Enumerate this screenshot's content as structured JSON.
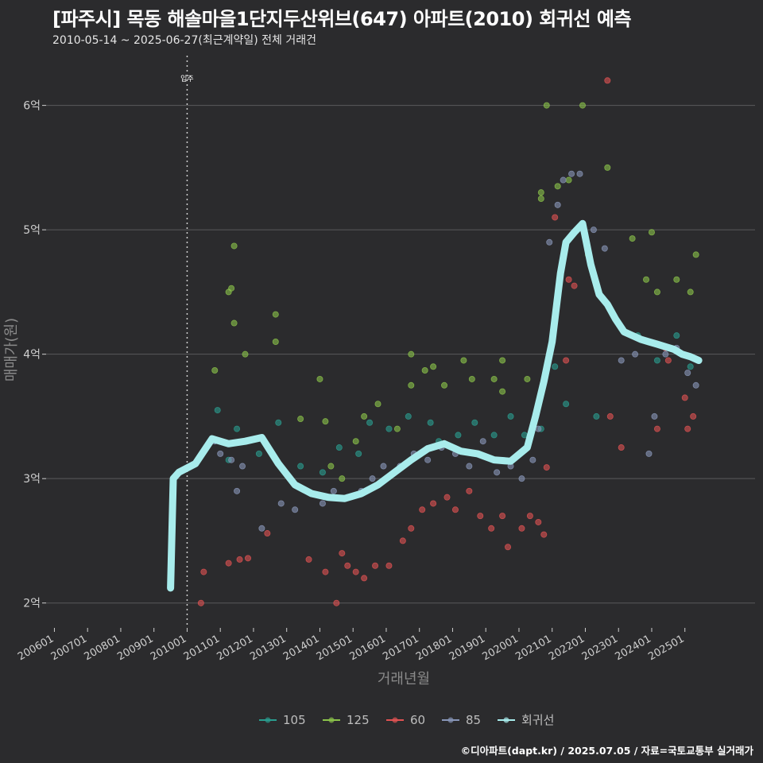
{
  "header": {
    "title": "[파주시] 목동 해솔마을1단지두산위브(647) 아파트(2010) 회귀선 예측",
    "subtitle": "2010-05-14 ~ 2025-06-27(최근계약일) 전체 거래건"
  },
  "footer": {
    "credit": "©디아파트(dapt.kr) / 2025.07.05 / 자료=국토교통부 실거래가"
  },
  "chart_data": {
    "type": "scatter",
    "xlabel": "거래년월",
    "ylabel": "매매가(원)",
    "ylim": [
      1.8,
      6.4
    ],
    "xlim": [
      "2005-10",
      "2025-12"
    ],
    "y_ticks": [
      {
        "value": 2,
        "label": "2억"
      },
      {
        "value": 3,
        "label": "3억"
      },
      {
        "value": 4,
        "label": "4억"
      },
      {
        "value": 5,
        "label": "5억"
      },
      {
        "value": 6,
        "label": "6억"
      }
    ],
    "x_ticks": [
      "200601",
      "200701",
      "200801",
      "200901",
      "201001",
      "201101",
      "201201",
      "201301",
      "201401",
      "201501",
      "201601",
      "201701",
      "201801",
      "201901",
      "202001",
      "202101",
      "202201",
      "202301",
      "202401",
      "202501"
    ],
    "grid": true,
    "legend_position": "bottom",
    "annotation": {
      "label": "입주",
      "x": "2010-01"
    },
    "colors": {
      "105": "#2a9d8f",
      "125": "#8bc34a",
      "60": "#e05252",
      "85": "#8896b8",
      "regression": "#a8ecec"
    },
    "series": [
      {
        "name": "105",
        "points": [
          [
            "2010-12",
            3.55
          ],
          [
            "2011-04",
            3.15
          ],
          [
            "2011-07",
            3.4
          ],
          [
            "2012-03",
            3.2
          ],
          [
            "2012-10",
            3.45
          ],
          [
            "2013-06",
            3.1
          ],
          [
            "2014-02",
            3.05
          ],
          [
            "2014-08",
            3.25
          ],
          [
            "2015-03",
            3.2
          ],
          [
            "2015-07",
            3.45
          ],
          [
            "2016-02",
            3.4
          ],
          [
            "2016-09",
            3.5
          ],
          [
            "2017-05",
            3.45
          ],
          [
            "2017-08",
            3.3
          ],
          [
            "2018-03",
            3.35
          ],
          [
            "2018-09",
            3.45
          ],
          [
            "2019-04",
            3.35
          ],
          [
            "2019-10",
            3.5
          ],
          [
            "2020-03",
            3.35
          ],
          [
            "2020-09",
            3.4
          ],
          [
            "2021-02",
            3.9
          ],
          [
            "2021-06",
            3.6
          ],
          [
            "2022-05",
            3.5
          ],
          [
            "2023-08",
            4.15
          ],
          [
            "2024-03",
            3.95
          ],
          [
            "2024-10",
            4.15
          ],
          [
            "2025-03",
            3.9
          ]
        ]
      },
      {
        "name": "125",
        "points": [
          [
            "2010-11",
            3.87
          ],
          [
            "2011-04",
            4.5
          ],
          [
            "2011-06",
            4.87
          ],
          [
            "2011-06",
            4.25
          ],
          [
            "2011-05",
            4.53
          ],
          [
            "2011-10",
            4.0
          ],
          [
            "2012-09",
            4.32
          ],
          [
            "2012-09",
            4.1
          ],
          [
            "2013-06",
            3.48
          ],
          [
            "2014-01",
            3.8
          ],
          [
            "2014-03",
            3.46
          ],
          [
            "2014-05",
            3.1
          ],
          [
            "2014-09",
            3.0
          ],
          [
            "2015-02",
            3.3
          ],
          [
            "2015-05",
            3.5
          ],
          [
            "2015-10",
            3.6
          ],
          [
            "2016-05",
            3.4
          ],
          [
            "2016-10",
            4.0
          ],
          [
            "2016-10",
            3.75
          ],
          [
            "2017-03",
            3.87
          ],
          [
            "2017-06",
            3.9
          ],
          [
            "2017-10",
            3.75
          ],
          [
            "2018-05",
            3.95
          ],
          [
            "2018-08",
            3.8
          ],
          [
            "2019-04",
            3.8
          ],
          [
            "2019-07",
            3.7
          ],
          [
            "2019-07",
            3.95
          ],
          [
            "2020-04",
            3.8
          ],
          [
            "2020-09",
            5.3
          ],
          [
            "2020-09",
            5.25
          ],
          [
            "2020-11",
            6.0
          ],
          [
            "2021-03",
            5.35
          ],
          [
            "2021-07",
            5.4
          ],
          [
            "2021-12",
            6.0
          ],
          [
            "2022-02",
            4.8
          ],
          [
            "2022-09",
            5.5
          ],
          [
            "2023-06",
            4.93
          ],
          [
            "2023-11",
            4.6
          ],
          [
            "2024-01",
            4.98
          ],
          [
            "2024-03",
            4.5
          ],
          [
            "2024-10",
            4.6
          ],
          [
            "2025-03",
            4.5
          ],
          [
            "2025-05",
            4.8
          ]
        ]
      },
      {
        "name": "60",
        "points": [
          [
            "2010-06",
            2.0
          ],
          [
            "2010-07",
            2.25
          ],
          [
            "2011-04",
            2.32
          ],
          [
            "2011-08",
            2.35
          ],
          [
            "2011-11",
            2.36
          ],
          [
            "2012-06",
            2.56
          ],
          [
            "2013-09",
            2.35
          ],
          [
            "2014-03",
            2.25
          ],
          [
            "2014-07",
            2.0
          ],
          [
            "2014-09",
            2.4
          ],
          [
            "2014-11",
            2.3
          ],
          [
            "2015-02",
            2.25
          ],
          [
            "2015-05",
            2.2
          ],
          [
            "2015-09",
            2.3
          ],
          [
            "2016-02",
            2.3
          ],
          [
            "2016-07",
            2.5
          ],
          [
            "2016-10",
            2.6
          ],
          [
            "2017-02",
            2.75
          ],
          [
            "2017-06",
            2.8
          ],
          [
            "2017-11",
            2.85
          ],
          [
            "2018-02",
            2.75
          ],
          [
            "2018-07",
            2.9
          ],
          [
            "2018-11",
            2.7
          ],
          [
            "2019-03",
            2.6
          ],
          [
            "2019-07",
            2.7
          ],
          [
            "2019-09",
            2.45
          ],
          [
            "2020-02",
            2.6
          ],
          [
            "2020-05",
            2.7
          ],
          [
            "2020-08",
            2.65
          ],
          [
            "2020-10",
            2.55
          ],
          [
            "2020-11",
            3.09
          ],
          [
            "2021-02",
            5.1
          ],
          [
            "2021-06",
            3.95
          ],
          [
            "2021-07",
            4.6
          ],
          [
            "2021-09",
            4.55
          ],
          [
            "2022-09",
            6.2
          ],
          [
            "2022-10",
            3.5
          ],
          [
            "2023-02",
            3.25
          ],
          [
            "2024-03",
            3.4
          ],
          [
            "2024-06",
            4.05
          ],
          [
            "2024-07",
            3.95
          ],
          [
            "2025-01",
            3.65
          ],
          [
            "2025-02",
            3.4
          ],
          [
            "2025-04",
            3.5
          ]
        ]
      },
      {
        "name": "85",
        "points": [
          [
            "2010-11",
            3.3
          ],
          [
            "2011-01",
            3.2
          ],
          [
            "2011-05",
            3.15
          ],
          [
            "2011-07",
            2.9
          ],
          [
            "2011-09",
            3.1
          ],
          [
            "2012-04",
            2.6
          ],
          [
            "2012-11",
            2.8
          ],
          [
            "2013-04",
            2.75
          ],
          [
            "2013-08",
            2.9
          ],
          [
            "2014-02",
            2.8
          ],
          [
            "2014-06",
            2.9
          ],
          [
            "2014-11",
            2.85
          ],
          [
            "2015-04",
            2.9
          ],
          [
            "2015-08",
            3.0
          ],
          [
            "2015-12",
            3.1
          ],
          [
            "2016-06",
            3.1
          ],
          [
            "2016-11",
            3.2
          ],
          [
            "2017-04",
            3.15
          ],
          [
            "2017-09",
            3.25
          ],
          [
            "2018-02",
            3.2
          ],
          [
            "2018-07",
            3.1
          ],
          [
            "2018-12",
            3.3
          ],
          [
            "2019-05",
            3.05
          ],
          [
            "2019-10",
            3.1
          ],
          [
            "2020-02",
            3.0
          ],
          [
            "2020-06",
            3.15
          ],
          [
            "2020-08",
            3.4
          ],
          [
            "2020-12",
            4.9
          ],
          [
            "2021-03",
            5.2
          ],
          [
            "2021-05",
            5.4
          ],
          [
            "2021-08",
            5.45
          ],
          [
            "2021-11",
            5.45
          ],
          [
            "2022-04",
            5.0
          ],
          [
            "2022-08",
            4.85
          ],
          [
            "2023-02",
            3.95
          ],
          [
            "2023-07",
            4.0
          ],
          [
            "2023-12",
            3.2
          ],
          [
            "2024-02",
            3.5
          ],
          [
            "2024-06",
            4.0
          ],
          [
            "2024-10",
            4.05
          ],
          [
            "2025-02",
            3.85
          ],
          [
            "2025-05",
            3.75
          ]
        ]
      },
      {
        "name": "회귀선",
        "points": [
          [
            "2009-07",
            2.12
          ],
          [
            "2009-08",
            3.0
          ],
          [
            "2009-10",
            3.05
          ],
          [
            "2010-04",
            3.12
          ],
          [
            "2010-10",
            3.32
          ],
          [
            "2011-04",
            3.28
          ],
          [
            "2011-10",
            3.3
          ],
          [
            "2012-04",
            3.33
          ],
          [
            "2012-10",
            3.12
          ],
          [
            "2013-04",
            2.95
          ],
          [
            "2013-10",
            2.88
          ],
          [
            "2014-04",
            2.85
          ],
          [
            "2014-10",
            2.84
          ],
          [
            "2015-04",
            2.88
          ],
          [
            "2015-10",
            2.95
          ],
          [
            "2016-04",
            3.05
          ],
          [
            "2016-10",
            3.15
          ],
          [
            "2017-04",
            3.24
          ],
          [
            "2017-10",
            3.28
          ],
          [
            "2018-04",
            3.22
          ],
          [
            "2018-10",
            3.2
          ],
          [
            "2019-04",
            3.15
          ],
          [
            "2019-10",
            3.14
          ],
          [
            "2020-04",
            3.25
          ],
          [
            "2020-07",
            3.5
          ],
          [
            "2020-10",
            3.78
          ],
          [
            "2021-01",
            4.1
          ],
          [
            "2021-04",
            4.65
          ],
          [
            "2021-06",
            4.9
          ],
          [
            "2021-09",
            4.98
          ],
          [
            "2021-12",
            5.05
          ],
          [
            "2022-03",
            4.72
          ],
          [
            "2022-06",
            4.48
          ],
          [
            "2022-09",
            4.4
          ],
          [
            "2022-12",
            4.28
          ],
          [
            "2023-03",
            4.18
          ],
          [
            "2023-06",
            4.15
          ],
          [
            "2023-09",
            4.12
          ],
          [
            "2023-12",
            4.1
          ],
          [
            "2024-03",
            4.08
          ],
          [
            "2024-06",
            4.06
          ],
          [
            "2024-09",
            4.04
          ],
          [
            "2024-12",
            4.0
          ],
          [
            "2025-03",
            3.98
          ],
          [
            "2025-06",
            3.95
          ]
        ]
      }
    ]
  }
}
